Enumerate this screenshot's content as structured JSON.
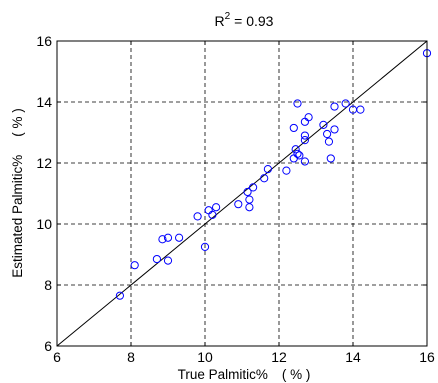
{
  "chart_data": {
    "type": "scatter",
    "title_prefix": "R",
    "title_sup": "2",
    "title_suffix": " = 0.93",
    "xlabel_text": "True  Palmitic%",
    "xlabel_units": "( % )",
    "ylabel_text": "Estimated  Palmitic%",
    "ylabel_units": "( % )",
    "xlim": [
      6,
      16
    ],
    "ylim": [
      6,
      16
    ],
    "xticks": [
      6,
      8,
      10,
      12,
      14,
      16
    ],
    "yticks": [
      6,
      8,
      10,
      12,
      14,
      16
    ],
    "grid": true,
    "grid_style": "dashed",
    "reference_line": {
      "x": [
        6,
        16
      ],
      "y": [
        6,
        16
      ]
    },
    "marker": "open-circle",
    "marker_color": "#0000ff",
    "points": [
      {
        "x": 7.7,
        "y": 7.65
      },
      {
        "x": 8.1,
        "y": 8.65
      },
      {
        "x": 8.7,
        "y": 8.85
      },
      {
        "x": 8.85,
        "y": 9.5
      },
      {
        "x": 9.0,
        "y": 9.55
      },
      {
        "x": 9.0,
        "y": 8.8
      },
      {
        "x": 9.3,
        "y": 9.55
      },
      {
        "x": 9.8,
        "y": 10.25
      },
      {
        "x": 10.0,
        "y": 9.25
      },
      {
        "x": 10.1,
        "y": 10.45
      },
      {
        "x": 10.2,
        "y": 10.3
      },
      {
        "x": 10.3,
        "y": 10.55
      },
      {
        "x": 10.9,
        "y": 10.65
      },
      {
        "x": 11.15,
        "y": 11.05
      },
      {
        "x": 11.2,
        "y": 10.8
      },
      {
        "x": 11.2,
        "y": 10.55
      },
      {
        "x": 11.3,
        "y": 11.2
      },
      {
        "x": 11.6,
        "y": 11.5
      },
      {
        "x": 11.7,
        "y": 11.8
      },
      {
        "x": 12.2,
        "y": 11.75
      },
      {
        "x": 12.4,
        "y": 12.15
      },
      {
        "x": 12.45,
        "y": 12.45
      },
      {
        "x": 12.5,
        "y": 12.3
      },
      {
        "x": 12.55,
        "y": 12.25
      },
      {
        "x": 12.7,
        "y": 12.05
      },
      {
        "x": 12.7,
        "y": 12.75
      },
      {
        "x": 12.7,
        "y": 12.9
      },
      {
        "x": 12.4,
        "y": 13.15
      },
      {
        "x": 12.7,
        "y": 13.35
      },
      {
        "x": 12.8,
        "y": 13.5
      },
      {
        "x": 12.5,
        "y": 13.95
      },
      {
        "x": 13.2,
        "y": 13.25
      },
      {
        "x": 13.3,
        "y": 12.95
      },
      {
        "x": 13.35,
        "y": 12.7
      },
      {
        "x": 13.4,
        "y": 12.15
      },
      {
        "x": 13.5,
        "y": 13.1
      },
      {
        "x": 13.5,
        "y": 13.85
      },
      {
        "x": 13.8,
        "y": 13.95
      },
      {
        "x": 14.0,
        "y": 13.75
      },
      {
        "x": 14.2,
        "y": 13.75
      },
      {
        "x": 16.0,
        "y": 15.6
      }
    ]
  }
}
